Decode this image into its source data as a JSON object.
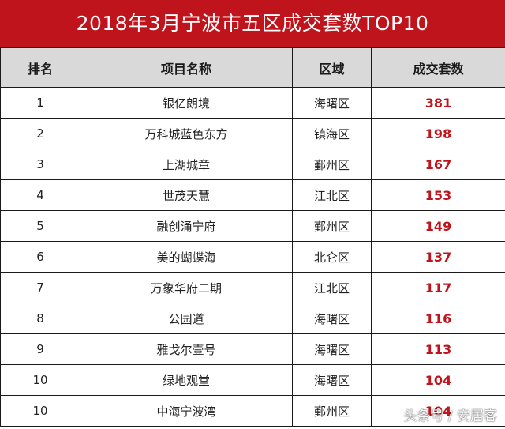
{
  "title": "2018年3月宁波市五区成交套数TOP10",
  "table": {
    "headers": [
      "排名",
      "项目名称",
      "区域",
      "成交套数"
    ],
    "rows": [
      {
        "rank": "1",
        "name": "银亿朗境",
        "district": "海曙区",
        "count": "381"
      },
      {
        "rank": "2",
        "name": "万科城蓝色东方",
        "district": "镇海区",
        "count": "198"
      },
      {
        "rank": "3",
        "name": "上湖城章",
        "district": "鄞州区",
        "count": "167"
      },
      {
        "rank": "4",
        "name": "世茂天慧",
        "district": "江北区",
        "count": "153"
      },
      {
        "rank": "5",
        "name": "融创涌宁府",
        "district": "鄞州区",
        "count": "149"
      },
      {
        "rank": "6",
        "name": "美的蝴蝶海",
        "district": "北仑区",
        "count": "137"
      },
      {
        "rank": "7",
        "name": "万象华府二期",
        "district": "江北区",
        "count": "117"
      },
      {
        "rank": "8",
        "name": "公园道",
        "district": "海曙区",
        "count": "116"
      },
      {
        "rank": "9",
        "name": "雅戈尔壹号",
        "district": "海曙区",
        "count": "113"
      },
      {
        "rank": "10",
        "name": "绿地观堂",
        "district": "海曙区",
        "count": "104"
      },
      {
        "rank": "10",
        "name": "中海宁波湾",
        "district": "鄞州区",
        "count": "104"
      }
    ]
  },
  "watermark": "头条号 / 安居客",
  "colors": {
    "title_bg": "#c0141c",
    "header_bg": "#d9d9d9",
    "count_text": "#c0141c"
  }
}
